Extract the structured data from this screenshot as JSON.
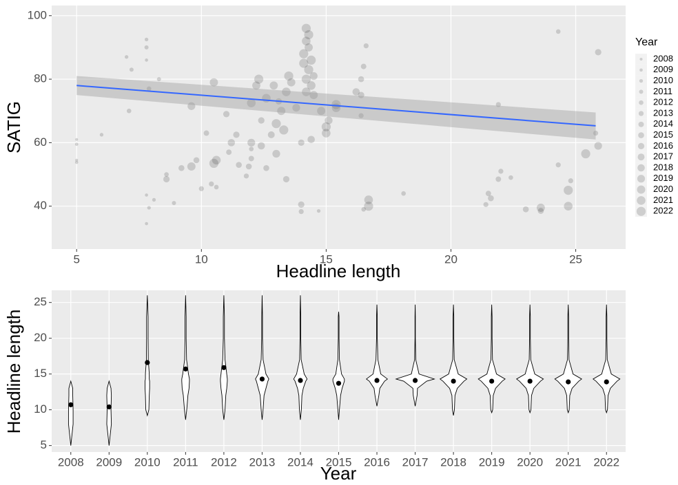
{
  "chart_data": [
    {
      "type": "scatter",
      "x_label": "Headline length",
      "y_label": "SATIG",
      "xlim": [
        4,
        27
      ],
      "ylim": [
        26.5,
        103.2
      ],
      "xticks": [
        5,
        10,
        15,
        20,
        25
      ],
      "yticks": [
        40,
        60,
        80,
        100
      ],
      "grid": true,
      "point_color": "#000000",
      "x": [
        5,
        5,
        5,
        5,
        6,
        7,
        7.2,
        7.1,
        7.8,
        7.8,
        7.8,
        7.9,
        7.8,
        7.8,
        7.9,
        8.1,
        8.3,
        8.6,
        8.6,
        8.9,
        9.2,
        9.6,
        9.6,
        9.8,
        10,
        10.2,
        10.4,
        10.5,
        10.5,
        10.6,
        10.6,
        11,
        11.1,
        11.2,
        11.4,
        11.5,
        11.8,
        11.9,
        12,
        12,
        12,
        12,
        12.2,
        12.3,
        12.4,
        12.4,
        12.6,
        12.6,
        12.8,
        12.9,
        13,
        13,
        13.1,
        13.2,
        13.3,
        13.4,
        13.5,
        13.4,
        13.6,
        13.8,
        14,
        14,
        14,
        14.1,
        14.1,
        14.2,
        14.2,
        14.2,
        14.2,
        14.3,
        14.3,
        14.3,
        14.4,
        14.4,
        14.5,
        14.5,
        14.4,
        14.7,
        14.8,
        15,
        15,
        15.1,
        15.4,
        15.4,
        16.2,
        16.4,
        16.5,
        16.6,
        16.4,
        16.4,
        16.7,
        16.7,
        16.5,
        18.1,
        21.5,
        21.6,
        21.4,
        21.9,
        21.9,
        22,
        22.4,
        23,
        23.6,
        23.6,
        24.3,
        24.3,
        24.7,
        24.7,
        24.8,
        25.4,
        25.9,
        25.9,
        25.8
      ],
      "y": [
        61,
        59.5,
        54.5,
        53.8,
        62.5,
        87,
        83,
        70,
        92.5,
        90,
        86,
        77,
        43.5,
        34.5,
        39.5,
        42,
        80,
        48.5,
        50,
        41,
        52,
        71.5,
        52.5,
        54.5,
        45.5,
        63,
        47,
        79,
        53.5,
        54.5,
        46,
        69,
        57,
        60,
        62.5,
        53,
        49.5,
        52.5,
        72.5,
        60,
        55,
        58,
        78,
        80,
        67,
        59,
        74,
        52,
        62.5,
        78,
        66,
        56.5,
        73,
        70,
        64,
        76,
        81,
        48.5,
        79,
        71,
        60,
        40.5,
        38.3,
        85,
        88,
        92,
        96,
        80,
        76,
        83,
        90,
        94,
        86,
        78,
        75,
        81,
        61,
        38.5,
        70,
        65,
        63,
        67,
        72,
        71,
        76,
        80,
        84,
        90.5,
        75,
        68.5,
        42,
        40,
        39,
        44,
        44,
        42.5,
        40.5,
        72,
        48.5,
        51,
        49,
        39,
        39.5,
        38.5,
        95,
        53,
        45,
        40,
        48,
        56.5,
        88.5,
        59,
        63
      ],
      "sizes": [
        2008,
        2009,
        2008,
        2009,
        2010,
        2010,
        2011,
        2012,
        2010,
        2011,
        2009,
        2012,
        2009,
        2009,
        2010,
        2010,
        2011,
        2016,
        2012,
        2011,
        2015,
        2019,
        2020,
        2015,
        2013,
        2014,
        2013,
        2020,
        2022,
        2021,
        2012,
        2016,
        2014,
        2018,
        2016,
        2015,
        2013,
        2015,
        2021,
        2019,
        2014,
        2012,
        2020,
        2022,
        2016,
        2018,
        2021,
        2015,
        2017,
        2020,
        2022,
        2019,
        2016,
        2020,
        2022,
        2021,
        2022,
        2016,
        2020,
        2019,
        2016,
        2016,
        2013,
        2022,
        2022,
        2021,
        2022,
        2022,
        2021,
        2022,
        2020,
        2022,
        2022,
        2021,
        2020,
        2019,
        2018,
        2010,
        2020,
        2022,
        2021,
        2019,
        2022,
        2021,
        2018,
        2015,
        2014,
        2013,
        2016,
        2013,
        2021,
        2022,
        2012,
        2012,
        2014,
        2015,
        2013,
        2013,
        2014,
        2013,
        2012,
        2015,
        2020,
        2015,
        2012,
        2013,
        2022,
        2021,
        2013,
        2022,
        2016,
        2019,
        2013
      ],
      "trend": {
        "color": "#3366ff",
        "x": [
          5,
          25.8
        ],
        "y": [
          78,
          65.3
        ],
        "lower": [
          75,
          61
        ],
        "upper": [
          81,
          69.5
        ]
      },
      "legend": {
        "title": "Year",
        "labels": [
          2008,
          2009,
          2010,
          2011,
          2012,
          2013,
          2014,
          2015,
          2016,
          2017,
          2018,
          2019,
          2020,
          2021,
          2022
        ]
      }
    },
    {
      "type": "violin",
      "x_label": "Year",
      "y_label": "Headline length",
      "ylim": [
        4.1,
        26.7
      ],
      "yticks": [
        5,
        10,
        15,
        20,
        25
      ],
      "grid": true,
      "categories": [
        "2008",
        "2009",
        "2010",
        "2011",
        "2012",
        "2013",
        "2014",
        "2015",
        "2016",
        "2017",
        "2018",
        "2019",
        "2020",
        "2021",
        "2022"
      ],
      "means": [
        10.7,
        10.4,
        16.6,
        15.7,
        15.9,
        14.3,
        14.1,
        13.7,
        14.1,
        14.1,
        14.0,
        14.0,
        14.0,
        13.9,
        13.9
      ],
      "ymin": [
        5,
        5,
        9.2,
        8.6,
        8.6,
        8.6,
        8.6,
        8.6,
        10.5,
        10.5,
        9.2,
        9.6,
        9.6,
        9.6,
        9.6
      ],
      "ymax": [
        14,
        14,
        26,
        26,
        26,
        26,
        26,
        23.7,
        24.7,
        24.7,
        24.7,
        24.7,
        24.7,
        24.7,
        24.7
      ],
      "density_y": [
        5,
        8,
        10,
        12,
        13,
        14,
        14.3,
        15,
        17,
        20,
        23,
        26
      ],
      "density": [
        [
          0.1,
          0.12,
          0.12,
          0.1,
          0.1,
          0.1,
          0,
          0,
          0,
          0,
          0,
          0
        ],
        [
          0.1,
          0.12,
          0.1,
          0.12,
          0.1,
          0.1,
          0,
          0,
          0,
          0,
          0,
          0
        ],
        [
          0,
          0,
          0.08,
          0.1,
          0.12,
          0.12,
          0.1,
          0.1,
          0.05,
          0.04,
          0.04,
          0.03
        ],
        [
          0,
          0,
          0.06,
          0.12,
          0.18,
          0.2,
          0.2,
          0.15,
          0.05,
          0.03,
          0.03,
          0.02
        ],
        [
          0,
          0,
          0.06,
          0.1,
          0.15,
          0.18,
          0.18,
          0.15,
          0.06,
          0.03,
          0.03,
          0.02
        ],
        [
          0,
          0,
          0.05,
          0.1,
          0.2,
          0.3,
          0.35,
          0.2,
          0.05,
          0.02,
          0.02,
          0.02
        ],
        [
          0,
          0,
          0.05,
          0.08,
          0.15,
          0.28,
          0.35,
          0.2,
          0.04,
          0.02,
          0.02,
          0.02
        ],
        [
          0,
          0,
          0.04,
          0.1,
          0.18,
          0.3,
          0.3,
          0.15,
          0.04,
          0.02,
          0.02,
          0
        ],
        [
          0,
          0,
          0,
          0.1,
          0.15,
          0.4,
          0.55,
          0.2,
          0.05,
          0.02,
          0.02,
          0
        ],
        [
          0,
          0,
          0,
          0.1,
          0.12,
          0.6,
          1,
          0.2,
          0.03,
          0.01,
          0.01,
          0
        ],
        [
          0,
          0,
          0.05,
          0.08,
          0.2,
          0.55,
          0.7,
          0.25,
          0.04,
          0.02,
          0.02,
          0
        ],
        [
          0,
          0,
          0.05,
          0.08,
          0.2,
          0.55,
          0.7,
          0.25,
          0.04,
          0.02,
          0.02,
          0
        ],
        [
          0,
          0,
          0.05,
          0.08,
          0.2,
          0.55,
          0.7,
          0.25,
          0.04,
          0.02,
          0.02,
          0
        ],
        [
          0,
          0,
          0.05,
          0.08,
          0.2,
          0.55,
          0.7,
          0.25,
          0.04,
          0.02,
          0.02,
          0
        ],
        [
          0,
          0,
          0.05,
          0.08,
          0.2,
          0.55,
          0.7,
          0.25,
          0.04,
          0.02,
          0.02,
          0
        ]
      ]
    }
  ]
}
